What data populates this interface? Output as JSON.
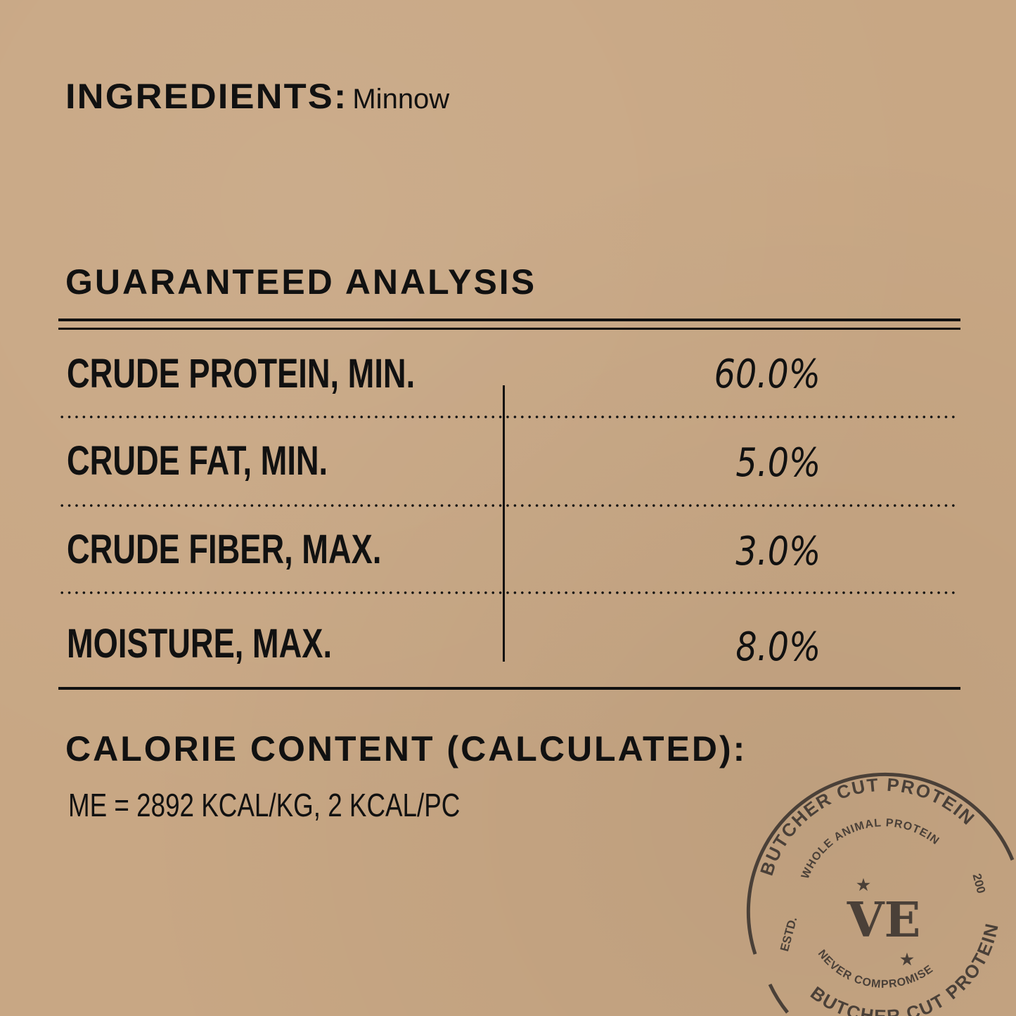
{
  "ingredients": {
    "label": "INGREDIENTS:",
    "value": "Minnow"
  },
  "analysis": {
    "title": "GUARANTEED ANALYSIS",
    "rows": [
      {
        "label": "CRUDE PROTEIN, MIN.",
        "value": "60.0%"
      },
      {
        "label": "CRUDE FAT, MIN.",
        "value": "5.0%"
      },
      {
        "label": "CRUDE FIBER, MAX.",
        "value": "3.0%"
      },
      {
        "label": "MOISTURE, MAX.",
        "value": "8.0%"
      }
    ]
  },
  "calorie": {
    "title": "CALORIE CONTENT (CALCULATED):",
    "value": "ME = 2892 KCAL/KG, 2 KCAL/PC"
  },
  "stamp": {
    "outer_top": "BUTCHER CUT PROTEIN",
    "inner_top": "WHOLE ANIMAL PROTEIN",
    "logo": "VE",
    "estd": "ESTD.",
    "year": "200",
    "inner_bottom": "NEVER COMPROMISE",
    "outer_bottom": "BUTCHER CUT PROTEIN",
    "color": "#4a4038"
  },
  "colors": {
    "background": "#c8a784",
    "ink": "#111111"
  }
}
